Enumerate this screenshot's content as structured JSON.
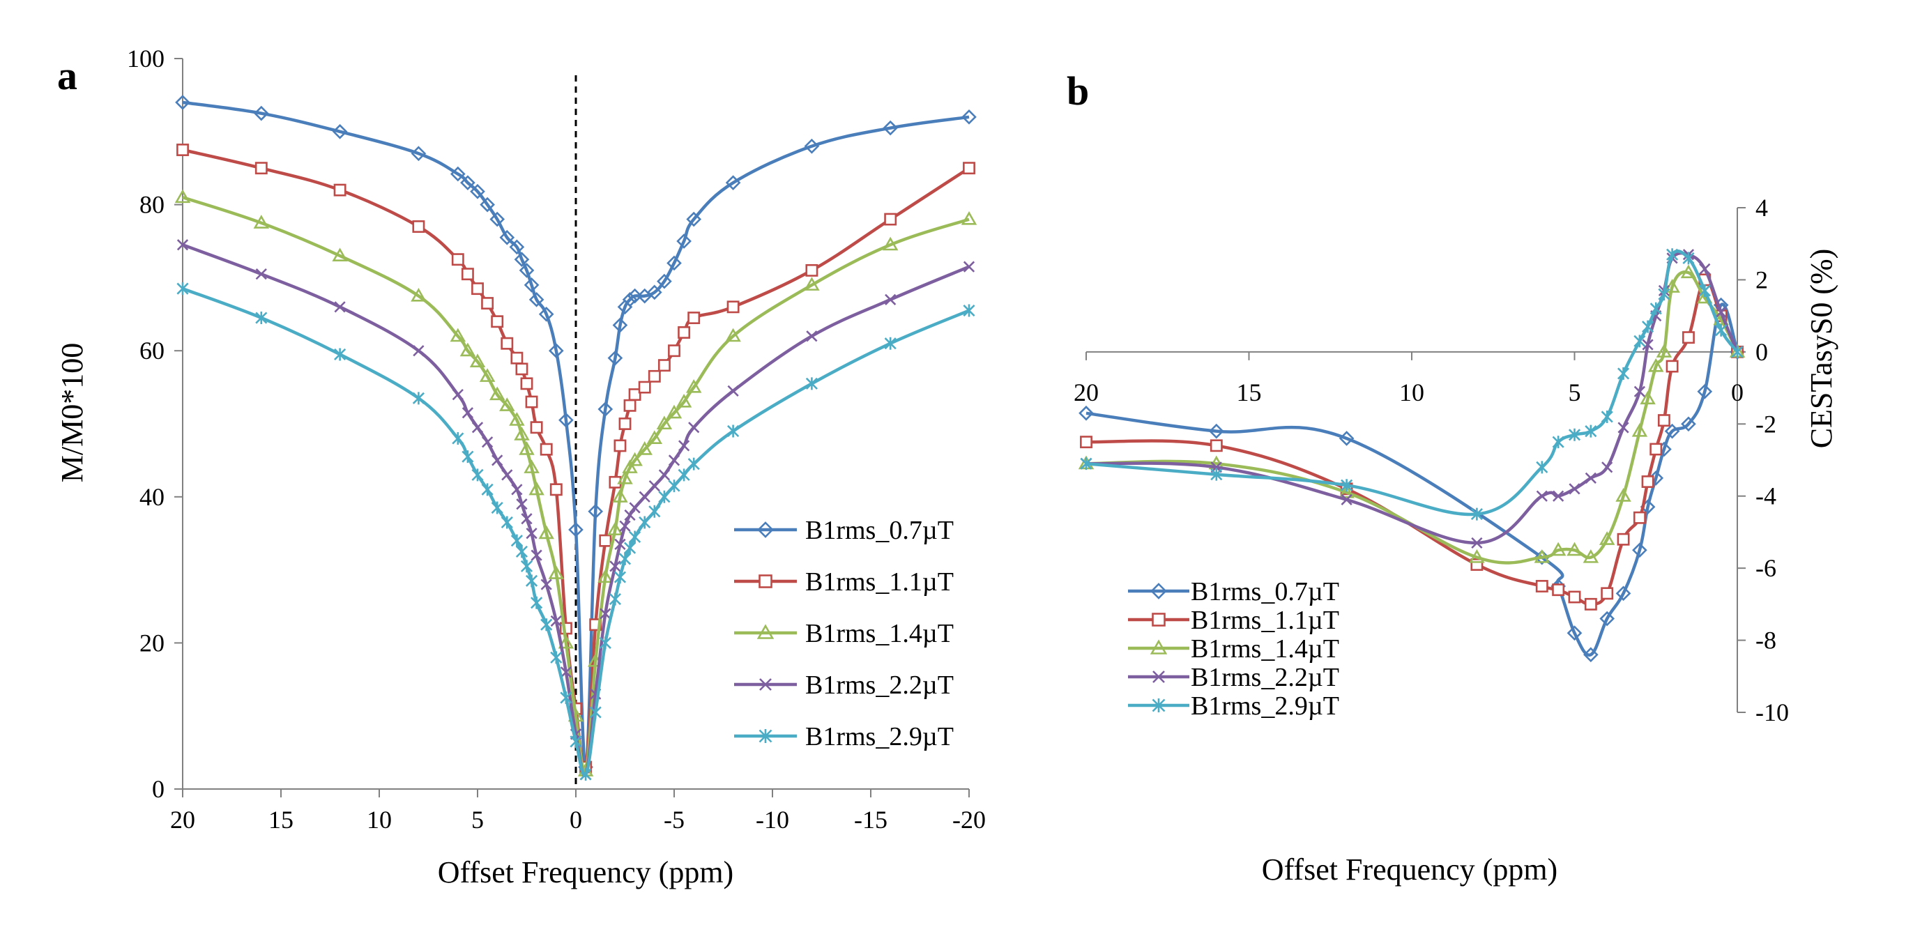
{
  "chart_data": [
    {
      "panel": "a",
      "type": "line",
      "xlabel": "Offset Frequency (ppm)",
      "ylabel": "M/M0*100",
      "xlim": [
        20,
        -20
      ],
      "ylim": [
        0,
        100
      ],
      "xticks": [
        20,
        15,
        10,
        5,
        0,
        -5,
        -10,
        -15,
        -20
      ],
      "yticks": [
        0,
        20,
        40,
        60,
        80,
        100
      ],
      "vline_at": 0,
      "legend_position": "bottom-right",
      "series": [
        {
          "name": "B1rms_0.7µT",
          "color": "#4A7EBB",
          "marker": "diamond",
          "x": [
            20,
            16,
            12,
            8,
            6,
            5.5,
            5,
            4.5,
            4,
            3.5,
            3,
            2.75,
            2.5,
            2.25,
            2,
            1.5,
            1,
            0.5,
            0,
            -0.5,
            -1,
            -1.5,
            -2,
            -2.25,
            -2.5,
            -2.75,
            -3,
            -3.5,
            -4,
            -4.5,
            -5,
            -5.5,
            -6,
            -8,
            -12,
            -16,
            -20
          ],
          "y": [
            94,
            92.5,
            90,
            87,
            84.2,
            83,
            81.8,
            80,
            78,
            75.5,
            74.2,
            72.5,
            71,
            69,
            67,
            65,
            60,
            50.5,
            35.5,
            3,
            38,
            52,
            59,
            63.5,
            66,
            67,
            67.5,
            67.5,
            68,
            69.5,
            72,
            75,
            78,
            83,
            88,
            90.5,
            92
          ]
        },
        {
          "name": "B1rms_1.1µT",
          "color": "#BE4B48",
          "marker": "square",
          "x": [
            20,
            16,
            12,
            8,
            6,
            5.5,
            5,
            4.5,
            4,
            3.5,
            3,
            2.75,
            2.5,
            2.25,
            2,
            1.5,
            1,
            0.5,
            0,
            -0.5,
            -1,
            -1.5,
            -2,
            -2.25,
            -2.5,
            -2.75,
            -3,
            -3.5,
            -4,
            -4.5,
            -5,
            -5.5,
            -6,
            -8,
            -12,
            -16,
            -20
          ],
          "y": [
            87.5,
            85,
            82,
            77,
            72.5,
            70.5,
            68.5,
            66.5,
            64,
            61,
            59,
            57.5,
            55.5,
            53,
            49.5,
            46.5,
            41,
            22,
            11,
            3,
            22.5,
            34,
            42,
            47,
            50,
            52.5,
            54,
            55,
            56.5,
            58,
            60,
            62.5,
            64.5,
            66,
            71,
            78,
            85
          ]
        },
        {
          "name": "B1rms_1.4µT",
          "color": "#9BBB59",
          "marker": "triangle",
          "x": [
            20,
            16,
            12,
            8,
            6,
            5.5,
            5,
            4.5,
            4,
            3.5,
            3,
            2.75,
            2.5,
            2.25,
            2,
            1.5,
            1,
            0.5,
            0,
            -0.5,
            -1,
            -1.5,
            -2,
            -2.25,
            -2.5,
            -2.75,
            -3,
            -3.5,
            -4,
            -4.5,
            -5,
            -5.5,
            -6,
            -8,
            -12,
            -16,
            -20
          ],
          "y": [
            81,
            77.5,
            73,
            67.5,
            62,
            60,
            58.5,
            56.5,
            54,
            52.5,
            50.5,
            48.5,
            46.5,
            44,
            41,
            35,
            29.5,
            20,
            10,
            2.5,
            17.5,
            29,
            35.5,
            40,
            42.5,
            44,
            45,
            46.5,
            48,
            50,
            51.5,
            53,
            55,
            62,
            69,
            74.5,
            78
          ]
        },
        {
          "name": "B1rms_2.2µT",
          "color": "#7D5FA0",
          "marker": "x",
          "x": [
            20,
            16,
            12,
            8,
            6,
            5.5,
            5,
            4.5,
            4,
            3.5,
            3,
            2.75,
            2.5,
            2.25,
            2,
            1.5,
            1,
            0.5,
            0,
            -0.5,
            -1,
            -1.5,
            -2,
            -2.25,
            -2.5,
            -2.75,
            -3,
            -3.5,
            -4,
            -4.5,
            -5,
            -5.5,
            -6,
            -8,
            -12,
            -16,
            -20
          ],
          "y": [
            74.5,
            70.5,
            66,
            60,
            54,
            51.5,
            49.5,
            47.5,
            45,
            43,
            41,
            39,
            37,
            35,
            32,
            28,
            23,
            16,
            7.5,
            2,
            13,
            24,
            30.5,
            33.5,
            36,
            37.5,
            38.5,
            40,
            41.5,
            43,
            45,
            47,
            49.5,
            54.5,
            62,
            67,
            71.5
          ]
        },
        {
          "name": "B1rms_2.9µT",
          "color": "#4BACC6",
          "marker": "star",
          "x": [
            20,
            16,
            12,
            8,
            6,
            5.5,
            5,
            4.5,
            4,
            3.5,
            3,
            2.75,
            2.5,
            2.25,
            2,
            1.5,
            1,
            0.5,
            0,
            -0.5,
            -1,
            -1.5,
            -2,
            -2.25,
            -2.5,
            -2.75,
            -3,
            -3.5,
            -4,
            -4.5,
            -5,
            -5.5,
            -6,
            -8,
            -12,
            -16,
            -20
          ],
          "y": [
            68.5,
            64.5,
            59.5,
            53.5,
            48,
            45.5,
            43,
            41,
            38.5,
            36.5,
            34,
            32.5,
            30.5,
            28.5,
            25.5,
            22.5,
            18,
            12.5,
            6.5,
            2,
            10.5,
            20,
            26,
            29,
            31.5,
            33,
            34.5,
            36.5,
            38,
            40,
            41.5,
            43,
            44.5,
            49,
            55.5,
            61,
            65.5
          ]
        }
      ]
    },
    {
      "panel": "b",
      "type": "line",
      "xlabel": "Offset Frequency (ppm)",
      "ylabel": "CESTasyS0 (%)",
      "xlim": [
        20,
        0
      ],
      "ylim": [
        -10,
        4
      ],
      "xticks": [
        20,
        15,
        10,
        5,
        0
      ],
      "yticks": [
        4,
        2,
        0,
        -2,
        -4,
        -6,
        -8,
        -10
      ],
      "legend_position": "bottom-left",
      "series": [
        {
          "name": "B1rms_0.7µT",
          "color": "#4A7EBB",
          "marker": "diamond",
          "x": [
            20,
            16,
            12,
            6,
            5.5,
            5,
            4.5,
            4,
            3.5,
            3,
            2.75,
            2.5,
            2.25,
            2,
            1.5,
            1,
            0.5,
            0
          ],
          "y": [
            -1.7,
            -2.2,
            -2.4,
            -5.7,
            -6.5,
            -7.8,
            -8.4,
            -7.4,
            -6.7,
            -5.5,
            -4.3,
            -3.5,
            -2.7,
            -2.2,
            -2,
            -1.1,
            1.3,
            0
          ]
        },
        {
          "name": "B1rms_1.1µT",
          "color": "#BE4B48",
          "marker": "square",
          "x": [
            20,
            16,
            12,
            8,
            6,
            5.5,
            5,
            4.5,
            4,
            3.5,
            3,
            2.75,
            2.5,
            2.25,
            2,
            1.5,
            1,
            0.5,
            0
          ],
          "y": [
            -2.5,
            -2.6,
            -3.8,
            -5.9,
            -6.5,
            -6.6,
            -6.8,
            -7,
            -6.7,
            -5.2,
            -4.6,
            -3.6,
            -2.7,
            -1.9,
            -0.4,
            0.4,
            2,
            1,
            0
          ]
        },
        {
          "name": "B1rms_1.4µT",
          "color": "#9BBB59",
          "marker": "triangle",
          "x": [
            20,
            16,
            12,
            8,
            6,
            5.5,
            5,
            4.5,
            4,
            3.5,
            3,
            2.75,
            2.5,
            2.25,
            2,
            1.5,
            1,
            0.5,
            0
          ],
          "y": [
            -3.1,
            -3.1,
            -3.9,
            -5.7,
            -5.7,
            -5.5,
            -5.5,
            -5.7,
            -5.2,
            -4,
            -2.2,
            -1.3,
            -0.4,
            0,
            1.8,
            2.2,
            1.5,
            0.9,
            0
          ]
        },
        {
          "name": "B1rms_2.2µT",
          "color": "#7D5FA0",
          "marker": "x",
          "x": [
            20,
            16,
            12,
            8,
            6,
            5.5,
            5,
            4.5,
            4,
            3.5,
            3,
            2.75,
            2.5,
            2.25,
            2,
            1.5,
            1,
            0.5,
            0
          ],
          "y": [
            -3.1,
            -3.2,
            -4.1,
            -5.3,
            -4,
            -4,
            -3.8,
            -3.5,
            -3.2,
            -2.1,
            -1.1,
            0.2,
            1,
            1.7,
            2.6,
            2.7,
            2.3,
            1.1,
            0
          ]
        },
        {
          "name": "B1rms_2.9µT",
          "color": "#4BACC6",
          "marker": "star",
          "x": [
            20,
            16,
            12,
            8,
            6,
            5.5,
            5,
            4.5,
            4,
            3.5,
            3,
            2.75,
            2.5,
            2.25,
            2,
            1.5,
            1,
            0.5,
            0
          ],
          "y": [
            -3.1,
            -3.4,
            -3.7,
            -4.5,
            -3.2,
            -2.5,
            -2.3,
            -2.2,
            -1.8,
            -0.6,
            0.3,
            0.7,
            1.2,
            1.6,
            2.7,
            2.6,
            1.7,
            0.6,
            0
          ]
        }
      ]
    }
  ]
}
